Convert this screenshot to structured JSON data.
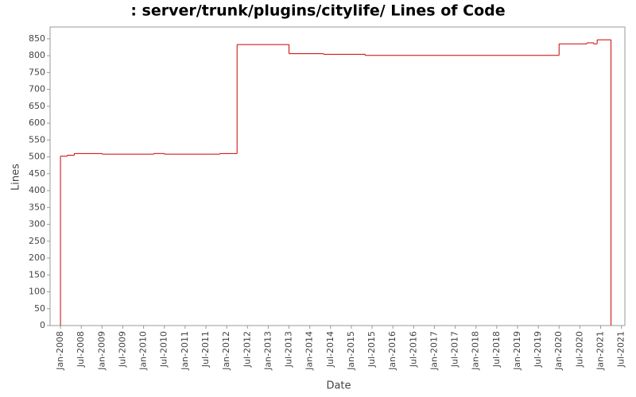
{
  "chart_data": {
    "type": "line",
    "step": true,
    "title": ": server/trunk/plugins/citylife/ Lines of Code",
    "x_label": "Date",
    "y_label": "Lines",
    "x": [
      "2008-01",
      "2008-01",
      "2008-03",
      "2008-05",
      "2009-01",
      "2010-04",
      "2010-07",
      "2011-11",
      "2012-04",
      "2013-07",
      "2014-05",
      "2015-05",
      "2020-01",
      "2020-09",
      "2020-11",
      "2020-12",
      "2021-04"
    ],
    "series": [
      {
        "name": "Lines",
        "color": "#cc0000",
        "values": [
          0,
          502,
          505,
          510,
          508,
          510,
          508,
          510,
          833,
          806,
          804,
          801,
          835,
          838,
          835,
          847,
          0
        ]
      }
    ],
    "xlim": [
      "2007-10",
      "2021-08"
    ],
    "xticks": [
      {
        "value": "2008-01",
        "label": "Jan-2008"
      },
      {
        "value": "2008-07",
        "label": "Jul-2008"
      },
      {
        "value": "2009-01",
        "label": "Jan-2009"
      },
      {
        "value": "2009-07",
        "label": "Jul-2009"
      },
      {
        "value": "2010-01",
        "label": "Jan-2010"
      },
      {
        "value": "2010-07",
        "label": "Jul-2010"
      },
      {
        "value": "2011-01",
        "label": "Jan-2011"
      },
      {
        "value": "2011-07",
        "label": "Jul-2011"
      },
      {
        "value": "2012-01",
        "label": "Jan-2012"
      },
      {
        "value": "2012-07",
        "label": "Jul-2012"
      },
      {
        "value": "2013-01",
        "label": "Jan-2013"
      },
      {
        "value": "2013-07",
        "label": "Jul-2013"
      },
      {
        "value": "2014-01",
        "label": "Jan-2014"
      },
      {
        "value": "2014-07",
        "label": "Jul-2014"
      },
      {
        "value": "2015-01",
        "label": "Jan-2015"
      },
      {
        "value": "2015-07",
        "label": "Jul-2015"
      },
      {
        "value": "2016-01",
        "label": "Jan-2016"
      },
      {
        "value": "2016-07",
        "label": "Jul-2016"
      },
      {
        "value": "2017-01",
        "label": "Jan-2017"
      },
      {
        "value": "2017-07",
        "label": "Jul-2017"
      },
      {
        "value": "2018-01",
        "label": "Jan-2018"
      },
      {
        "value": "2018-07",
        "label": "Jul-2018"
      },
      {
        "value": "2019-01",
        "label": "Jan-2019"
      },
      {
        "value": "2019-07",
        "label": "Jul-2019"
      },
      {
        "value": "2020-01",
        "label": "Jan-2020"
      },
      {
        "value": "2020-07",
        "label": "Jul-2020"
      },
      {
        "value": "2021-01",
        "label": "Jan-2021"
      },
      {
        "value": "2021-07",
        "label": "Jul-2021"
      }
    ],
    "ylim": [
      0,
      885
    ],
    "yticks": [
      0,
      50,
      100,
      150,
      200,
      250,
      300,
      350,
      400,
      450,
      500,
      550,
      600,
      650,
      700,
      750,
      800,
      850
    ],
    "grid": false
  }
}
